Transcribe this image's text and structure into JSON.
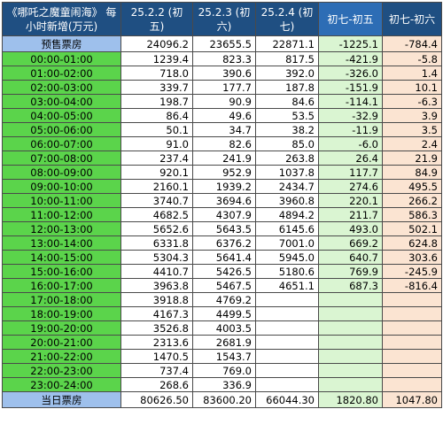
{
  "header": {
    "title": "《哪吒之魔童闹海》 每小时新增(万元)",
    "col1": "25.2.2 (初五)",
    "col2": "25.2.3 (初六)",
    "col3": "25.2.4 (初七)",
    "col4": "初七-初五",
    "col5": "初七-初六"
  },
  "presale": {
    "label": "预售票房",
    "v1": "24096.2",
    "v2": "23655.5",
    "v3": "22871.1",
    "d1": "-1225.1",
    "d2": "-784.4"
  },
  "rows": [
    {
      "time": "00:00-01:00",
      "v1": "1239.4",
      "v2": "823.3",
      "v3": "817.5",
      "d1": "-421.9",
      "d2": "-5.8"
    },
    {
      "time": "01:00-02:00",
      "v1": "718.0",
      "v2": "390.6",
      "v3": "392.0",
      "d1": "-326.0",
      "d2": "1.4"
    },
    {
      "time": "02:00-03:00",
      "v1": "339.7",
      "v2": "177.7",
      "v3": "187.8",
      "d1": "-151.9",
      "d2": "10.1"
    },
    {
      "time": "03:00-04:00",
      "v1": "198.7",
      "v2": "90.9",
      "v3": "84.6",
      "d1": "-114.1",
      "d2": "-6.3"
    },
    {
      "time": "04:00-05:00",
      "v1": "86.4",
      "v2": "49.6",
      "v3": "53.5",
      "d1": "-32.9",
      "d2": "3.9"
    },
    {
      "time": "05:00-06:00",
      "v1": "50.1",
      "v2": "34.7",
      "v3": "38.2",
      "d1": "-11.9",
      "d2": "3.5"
    },
    {
      "time": "06:00-07:00",
      "v1": "91.0",
      "v2": "82.6",
      "v3": "85.0",
      "d1": "-6.0",
      "d2": "2.4"
    },
    {
      "time": "07:00-08:00",
      "v1": "237.4",
      "v2": "241.9",
      "v3": "263.8",
      "d1": "26.4",
      "d2": "21.9"
    },
    {
      "time": "08:00-09:00",
      "v1": "920.1",
      "v2": "952.9",
      "v3": "1037.8",
      "d1": "117.7",
      "d2": "84.9"
    },
    {
      "time": "09:00-10:00",
      "v1": "2160.1",
      "v2": "1939.2",
      "v3": "2434.7",
      "d1": "274.6",
      "d2": "495.5"
    },
    {
      "time": "10:00-11:00",
      "v1": "3740.7",
      "v2": "3694.6",
      "v3": "3960.8",
      "d1": "220.1",
      "d2": "266.2"
    },
    {
      "time": "11:00-12:00",
      "v1": "4682.5",
      "v2": "4307.9",
      "v3": "4894.2",
      "d1": "211.7",
      "d2": "586.3"
    },
    {
      "time": "12:00-13:00",
      "v1": "5652.6",
      "v2": "5643.5",
      "v3": "6145.6",
      "d1": "493.0",
      "d2": "502.1"
    },
    {
      "time": "13:00-14:00",
      "v1": "6331.8",
      "v2": "6376.2",
      "v3": "7001.0",
      "d1": "669.2",
      "d2": "624.8"
    },
    {
      "time": "14:00-15:00",
      "v1": "5304.3",
      "v2": "5641.4",
      "v3": "5945.0",
      "d1": "640.7",
      "d2": "303.6"
    },
    {
      "time": "15:00-16:00",
      "v1": "4410.7",
      "v2": "5426.5",
      "v3": "5180.6",
      "d1": "769.9",
      "d2": "-245.9"
    },
    {
      "time": "16:00-17:00",
      "v1": "3963.8",
      "v2": "5467.5",
      "v3": "4651.1",
      "d1": "687.3",
      "d2": "-816.4"
    },
    {
      "time": "17:00-18:00",
      "v1": "3918.8",
      "v2": "4769.2",
      "v3": "",
      "d1": "",
      "d2": ""
    },
    {
      "time": "18:00-19:00",
      "v1": "4167.3",
      "v2": "4499.5",
      "v3": "",
      "d1": "",
      "d2": ""
    },
    {
      "time": "19:00-20:00",
      "v1": "3526.8",
      "v2": "4003.5",
      "v3": "",
      "d1": "",
      "d2": ""
    },
    {
      "time": "20:00-21:00",
      "v1": "2313.6",
      "v2": "2681.9",
      "v3": "",
      "d1": "",
      "d2": ""
    },
    {
      "time": "21:00-22:00",
      "v1": "1470.5",
      "v2": "1543.7",
      "v3": "",
      "d1": "",
      "d2": ""
    },
    {
      "time": "22:00-23:00",
      "v1": "737.4",
      "v2": "769.0",
      "v3": "",
      "d1": "",
      "d2": ""
    },
    {
      "time": "23:00-24:00",
      "v1": "268.6",
      "v2": "336.9",
      "v3": "",
      "d1": "",
      "d2": ""
    }
  ],
  "total": {
    "label": "当日票房",
    "v1": "80626.50",
    "v2": "83600.20",
    "v3": "66044.30",
    "d1": "1820.80",
    "d2": "1047.80"
  }
}
